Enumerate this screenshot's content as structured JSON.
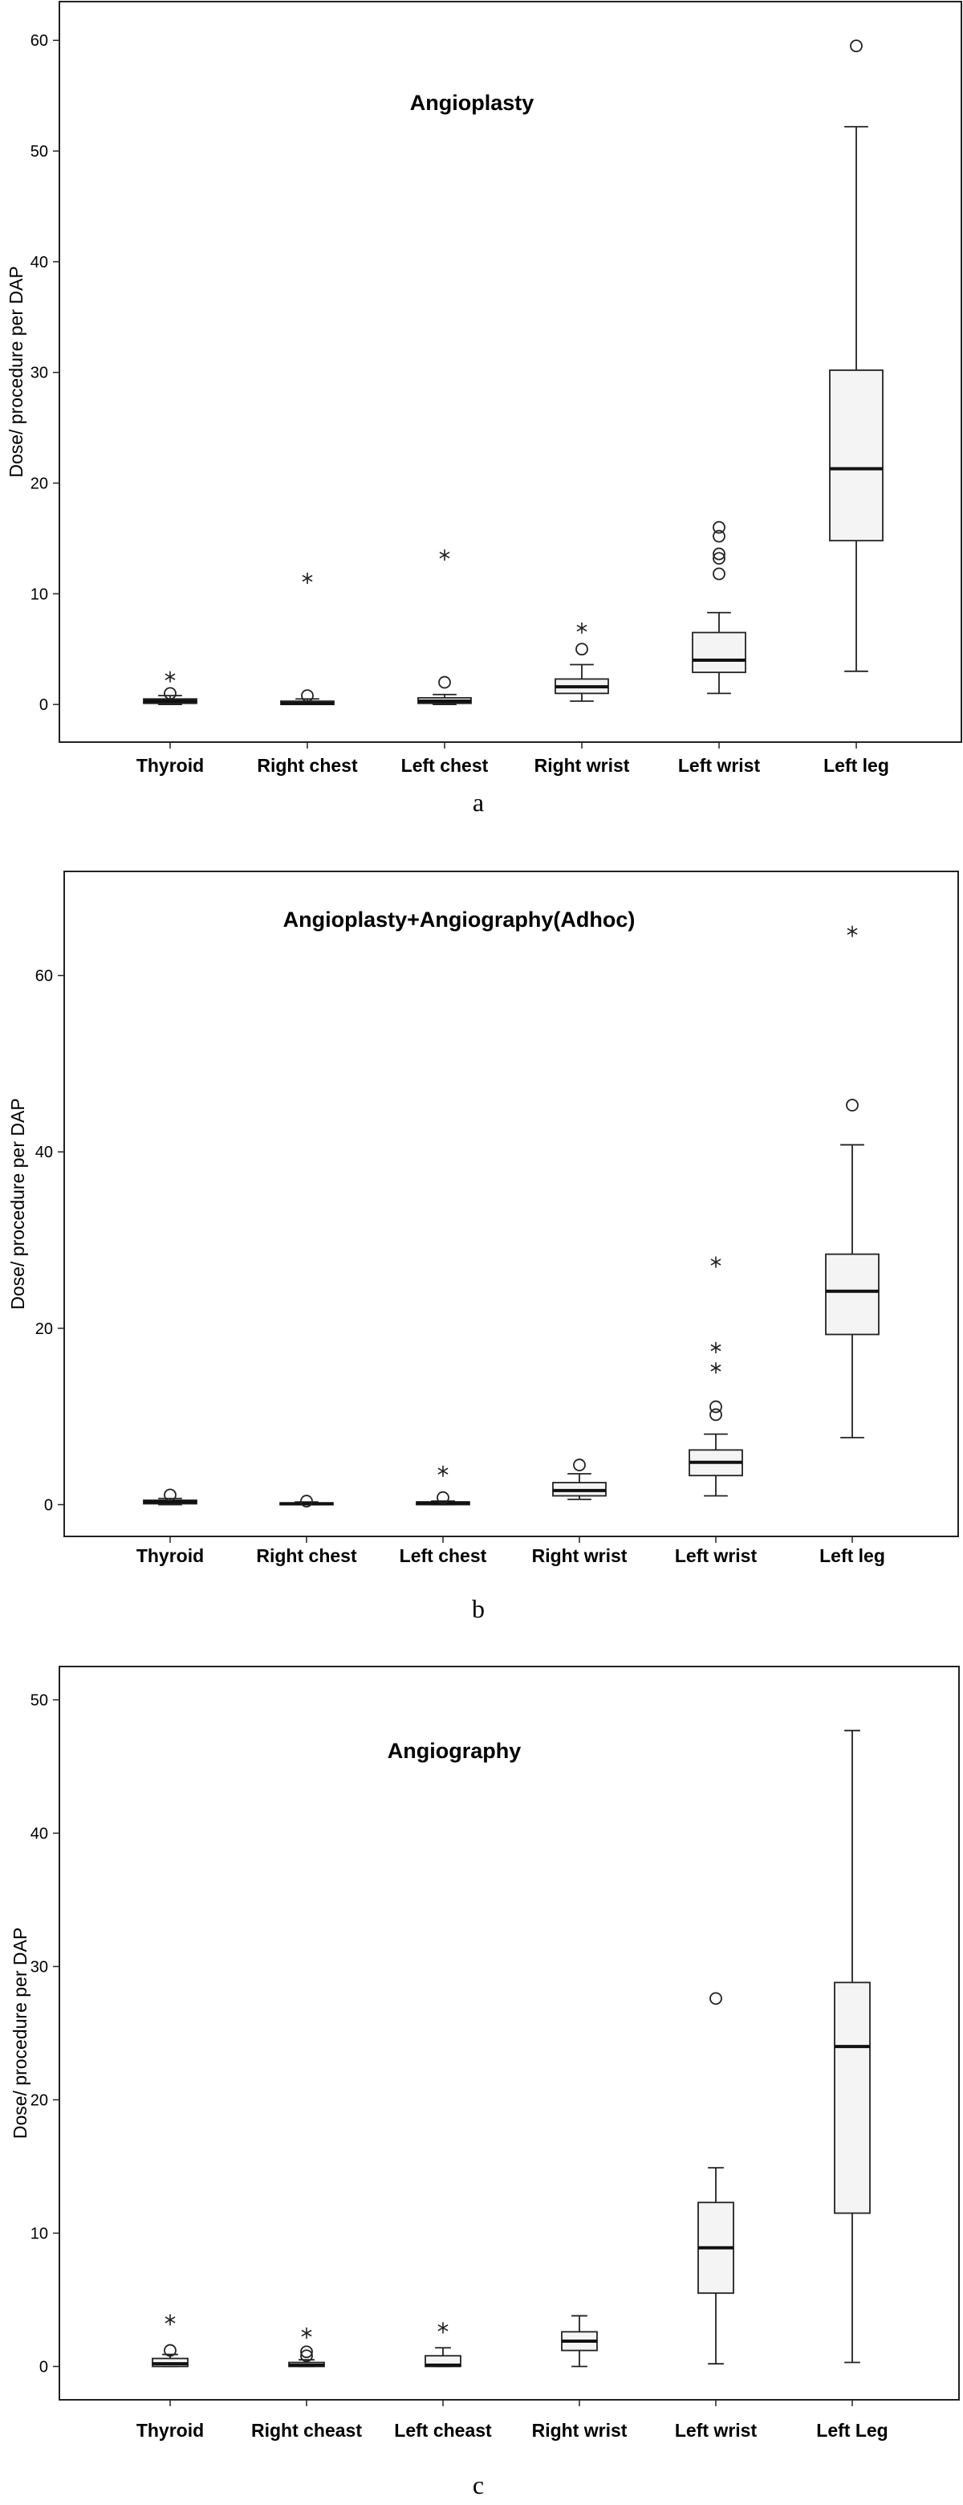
{
  "chart_data": [
    {
      "type": "boxplot",
      "panel_label": "a",
      "title": "Angioplasty",
      "ylabel": "Dose/ procedure per DAP",
      "ylim": [
        -3.4,
        63.5
      ],
      "yticks": [
        0,
        10,
        20,
        30,
        40,
        50,
        60
      ],
      "categories": [
        "Thyroid",
        "Right chest",
        "Left chest",
        "Right wrist",
        "Left wrist",
        "Left leg"
      ],
      "boxes": [
        {
          "whisker_low": 0.0,
          "q1": 0.1,
          "median": 0.3,
          "q3": 0.5,
          "whisker_high": 0.8,
          "outliers": [
            1.0
          ],
          "extremes": [
            2.5
          ]
        },
        {
          "whisker_low": 0.0,
          "q1": 0.0,
          "median": 0.1,
          "q3": 0.3,
          "whisker_high": 0.5,
          "outliers": [
            0.8
          ],
          "extremes": [
            11.4
          ]
        },
        {
          "whisker_low": 0.0,
          "q1": 0.1,
          "median": 0.3,
          "q3": 0.6,
          "whisker_high": 0.9,
          "outliers": [
            2.0
          ],
          "extremes": [
            13.5
          ]
        },
        {
          "whisker_low": 0.3,
          "q1": 1.0,
          "median": 1.6,
          "q3": 2.3,
          "whisker_high": 3.6,
          "outliers": [
            5.0
          ],
          "extremes": [
            6.9
          ]
        },
        {
          "whisker_low": 1.0,
          "q1": 2.9,
          "median": 4.0,
          "q3": 6.5,
          "whisker_high": 8.3,
          "outliers": [
            11.8,
            13.2,
            13.6,
            15.2,
            16.0
          ],
          "extremes": []
        },
        {
          "whisker_low": 3.0,
          "q1": 14.8,
          "median": 21.3,
          "q3": 30.2,
          "whisker_high": 52.2,
          "outliers": [
            59.5
          ],
          "extremes": []
        }
      ]
    },
    {
      "type": "boxplot",
      "panel_label": "b",
      "title": "Angioplasty+Angiography(Adhoc)",
      "ylabel": "Dose/ procedure per DAP",
      "ylim": [
        -3.6,
        71.8
      ],
      "yticks": [
        0,
        20,
        40,
        60
      ],
      "categories": [
        "Thyroid",
        "Right chest",
        "Left chest",
        "Right wrist",
        "Left wrist",
        "Left leg"
      ],
      "boxes": [
        {
          "whisker_low": 0.0,
          "q1": 0.1,
          "median": 0.3,
          "q3": 0.5,
          "whisker_high": 0.7,
          "outliers": [
            1.1
          ],
          "extremes": []
        },
        {
          "whisker_low": 0.0,
          "q1": 0.0,
          "median": 0.1,
          "q3": 0.2,
          "whisker_high": 0.3,
          "outliers": [
            0.4
          ],
          "extremes": []
        },
        {
          "whisker_low": 0.0,
          "q1": 0.0,
          "median": 0.2,
          "q3": 0.3,
          "whisker_high": 0.4,
          "outliers": [
            0.8
          ],
          "extremes": [
            3.8
          ]
        },
        {
          "whisker_low": 0.6,
          "q1": 1.0,
          "median": 1.6,
          "q3": 2.5,
          "whisker_high": 3.5,
          "outliers": [
            4.5
          ],
          "extremes": []
        },
        {
          "whisker_low": 1.0,
          "q1": 3.3,
          "median": 4.8,
          "q3": 6.2,
          "whisker_high": 8.0,
          "outliers": [
            10.2,
            11.1
          ],
          "extremes": [
            15.5,
            17.8,
            27.5
          ]
        },
        {
          "whisker_low": 7.6,
          "q1": 19.3,
          "median": 24.2,
          "q3": 28.4,
          "whisker_high": 40.8,
          "outliers": [
            45.3
          ],
          "extremes": [
            65.0
          ]
        }
      ]
    },
    {
      "type": "boxplot",
      "panel_label": "c",
      "title": "Angiography",
      "ylabel": "Dose/ procedure per DAP",
      "ylim": [
        -2.5,
        52.5
      ],
      "yticks": [
        0,
        10,
        20,
        30,
        40,
        50
      ],
      "categories": [
        "Thyroid",
        "Right cheast",
        "Left cheast",
        "Right wrist",
        "Left wrist",
        "Left Leg"
      ],
      "boxes": [
        {
          "whisker_low": 0.0,
          "q1": 0.0,
          "median": 0.2,
          "q3": 0.6,
          "whisker_high": 0.9,
          "outliers": [
            1.2
          ],
          "extremes": [
            3.5
          ]
        },
        {
          "whisker_low": 0.0,
          "q1": 0.0,
          "median": 0.1,
          "q3": 0.3,
          "whisker_high": 0.5,
          "outliers": [
            0.8,
            1.1
          ],
          "extremes": [
            2.5
          ]
        },
        {
          "whisker_low": 0.0,
          "q1": 0.0,
          "median": 0.1,
          "q3": 0.8,
          "whisker_high": 1.4,
          "outliers": [],
          "extremes": [
            2.9
          ]
        },
        {
          "whisker_low": 0.0,
          "q1": 1.2,
          "median": 1.9,
          "q3": 2.6,
          "whisker_high": 3.8,
          "outliers": [],
          "extremes": []
        },
        {
          "whisker_low": 0.2,
          "q1": 5.5,
          "median": 8.9,
          "q3": 12.3,
          "whisker_high": 14.9,
          "outliers": [
            27.6
          ],
          "extremes": []
        },
        {
          "whisker_low": 0.3,
          "q1": 11.5,
          "median": 24.0,
          "q3": 28.8,
          "whisker_high": 47.7,
          "outliers": [],
          "extremes": []
        }
      ]
    }
  ]
}
